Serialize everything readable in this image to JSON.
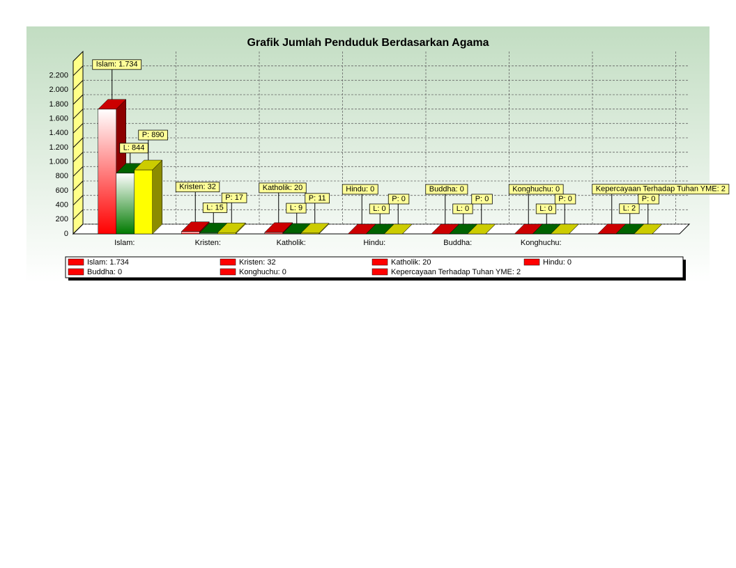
{
  "chart_data": {
    "type": "bar3d",
    "title": "Grafik Jumlah Penduduk Berdasarkan Agama",
    "categories": [
      "Islam:",
      "Kristen:",
      "Katholik:",
      "Hindu:",
      "Buddha:",
      "Konghuchu:",
      null
    ],
    "series": [
      {
        "color": "#ff0000",
        "values": [
          1734,
          32,
          20,
          0,
          0,
          0,
          2
        ],
        "value_labels": [
          "Islam:  1.734",
          "Kristen:  32",
          "Katholik:  20",
          "Hindu:  0",
          "Buddha:  0",
          "Konghuchu:  0",
          "Kepercayaan Terhadap Tuhan YME:  2"
        ]
      },
      {
        "color": "#007a00",
        "values": [
          844,
          15,
          9,
          0,
          0,
          0,
          2
        ],
        "value_labels": [
          "L:  844",
          "L:  15",
          "L:  9",
          "L:  0",
          "L:  0",
          "L:  0",
          "L:  2"
        ]
      },
      {
        "color": "#ffff00",
        "values": [
          890,
          17,
          11,
          0,
          0,
          0,
          0
        ],
        "value_labels": [
          "P:  890",
          "P:  17",
          "P:  11",
          "P:  0",
          "P:  0",
          "P:  0",
          "P:  0"
        ]
      }
    ],
    "ylim": [
      0,
      2400
    ],
    "yticks": [
      0,
      200,
      400,
      600,
      800,
      {
        "value": 1000,
        "label": "1.000"
      },
      {
        "value": 1200,
        "label": "1.200"
      },
      {
        "value": 1400,
        "label": "1.400"
      },
      {
        "value": 1600,
        "label": "1.600"
      },
      {
        "value": 1800,
        "label": "1.800"
      },
      {
        "value": 2000,
        "label": "2.000"
      },
      {
        "value": 2200,
        "label": "2.200"
      }
    ],
    "grid": true
  }
}
